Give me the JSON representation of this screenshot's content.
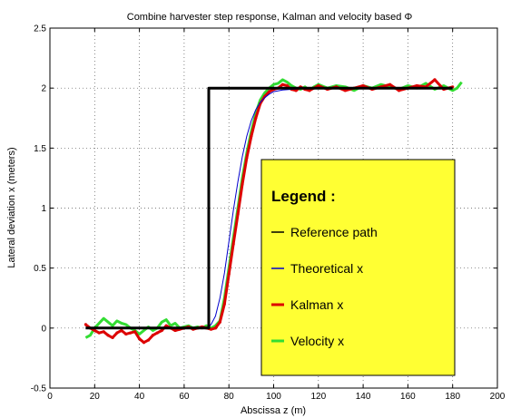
{
  "chart_data": {
    "type": "line",
    "title": "Combine harvester step response, Kalman  and velocity based Φ",
    "xlabel": "Abscissa z (m)",
    "ylabel": "Lateral deviation x (meters)",
    "xlim": [
      0,
      200
    ],
    "ylim": [
      -0.5,
      2.5
    ],
    "xticks": [
      "0",
      "20",
      "40",
      "60",
      "80",
      "100",
      "120",
      "140",
      "160",
      "180",
      "200"
    ],
    "yticks": [
      "-0.5",
      "0",
      "0.5",
      "1",
      "1.5",
      "2",
      "2.5"
    ],
    "grid": true,
    "legend": {
      "title": "Legend :",
      "placement": "lower-right",
      "background": "#ffff33",
      "entries": [
        {
          "label": "Reference path",
          "color": "#000000"
        },
        {
          "label": "Theoretical x",
          "color": "#0000cc"
        },
        {
          "label": "Kalman x",
          "color": "#dd0000"
        },
        {
          "label": "Velocity x",
          "color": "#33dd33"
        }
      ]
    },
    "series": [
      {
        "name": "Reference path",
        "color": "#000000",
        "x": [
          16,
          71,
          71,
          180
        ],
        "y": [
          0,
          0,
          2,
          2
        ]
      },
      {
        "name": "Theoretical x",
        "color": "#0000cc",
        "x": [
          16,
          60,
          70,
          71,
          72,
          74,
          76,
          78,
          80,
          82,
          84,
          86,
          88,
          90,
          92,
          94,
          96,
          98,
          100,
          104,
          108,
          112,
          116,
          120,
          130,
          140,
          150,
          160,
          170,
          180
        ],
        "y": [
          0,
          0,
          0,
          0.01,
          0.03,
          0.1,
          0.25,
          0.46,
          0.72,
          0.98,
          1.22,
          1.43,
          1.6,
          1.73,
          1.82,
          1.88,
          1.92,
          1.95,
          1.97,
          1.985,
          1.99,
          1.995,
          2.0,
          2.0,
          2.0,
          2.0,
          2.0,
          2.0,
          2.0,
          2.0
        ]
      },
      {
        "name": "Kalman x",
        "color": "#dd0000",
        "x": [
          16,
          18,
          20,
          22,
          24,
          26,
          28,
          30,
          32,
          34,
          36,
          38,
          40,
          42,
          44,
          46,
          48,
          50,
          52,
          54,
          56,
          58,
          60,
          62,
          64,
          66,
          68,
          70,
          72,
          74,
          76,
          78,
          80,
          82,
          84,
          86,
          88,
          90,
          92,
          94,
          96,
          98,
          100,
          102,
          104,
          106,
          108,
          110,
          112,
          114,
          116,
          118,
          120,
          124,
          128,
          132,
          136,
          140,
          144,
          148,
          152,
          156,
          160,
          164,
          168,
          172,
          176,
          180
        ],
        "y": [
          0.03,
          0.0,
          -0.02,
          -0.04,
          -0.03,
          -0.06,
          -0.08,
          -0.04,
          -0.02,
          -0.05,
          -0.04,
          -0.03,
          -0.09,
          -0.12,
          -0.1,
          -0.06,
          -0.04,
          -0.02,
          0.02,
          0.0,
          -0.02,
          -0.01,
          0.0,
          0.01,
          -0.01,
          0.0,
          0.01,
          0.0,
          -0.01,
          0.0,
          0.05,
          0.2,
          0.45,
          0.7,
          0.95,
          1.2,
          1.42,
          1.6,
          1.75,
          1.87,
          1.93,
          1.97,
          1.99,
          2.0,
          2.03,
          2.02,
          1.99,
          1.98,
          2.01,
          1.99,
          1.98,
          2.0,
          2.02,
          1.99,
          2.01,
          1.98,
          2.0,
          2.02,
          1.99,
          2.01,
          2.03,
          1.98,
          2.0,
          2.02,
          2.01,
          2.07,
          1.99,
          2.01
        ]
      },
      {
        "name": "Velocity x",
        "color": "#33dd33",
        "x": [
          16,
          18,
          20,
          22,
          24,
          26,
          28,
          30,
          32,
          34,
          36,
          38,
          40,
          42,
          44,
          46,
          48,
          50,
          52,
          54,
          56,
          58,
          60,
          62,
          64,
          66,
          68,
          70,
          72,
          74,
          76,
          78,
          80,
          82,
          84,
          86,
          88,
          90,
          92,
          94,
          96,
          98,
          100,
          102,
          104,
          106,
          108,
          110,
          112,
          114,
          116,
          118,
          120,
          124,
          128,
          132,
          136,
          140,
          144,
          148,
          152,
          156,
          160,
          164,
          168,
          172,
          176,
          180,
          182,
          184
        ],
        "y": [
          -0.08,
          -0.06,
          0.0,
          0.04,
          0.08,
          0.05,
          0.02,
          0.06,
          0.04,
          0.03,
          0.0,
          -0.02,
          -0.05,
          -0.02,
          0.01,
          -0.02,
          0.0,
          0.05,
          0.07,
          0.02,
          0.04,
          0.0,
          0.01,
          0.02,
          0.0,
          0.01,
          0.0,
          0.02,
          0.0,
          0.02,
          0.06,
          0.25,
          0.5,
          0.75,
          1.0,
          1.25,
          1.46,
          1.64,
          1.79,
          1.9,
          1.96,
          2.0,
          2.03,
          2.04,
          2.07,
          2.05,
          2.02,
          2.0,
          1.99,
          2.01,
          1.98,
          2.01,
          2.03,
          2.0,
          2.02,
          2.01,
          1.98,
          2.02,
          2.0,
          2.03,
          2.01,
          1.99,
          2.02,
          2.0,
          2.04,
          1.99,
          2.02,
          1.98,
          2.0,
          2.05
        ]
      }
    ]
  }
}
